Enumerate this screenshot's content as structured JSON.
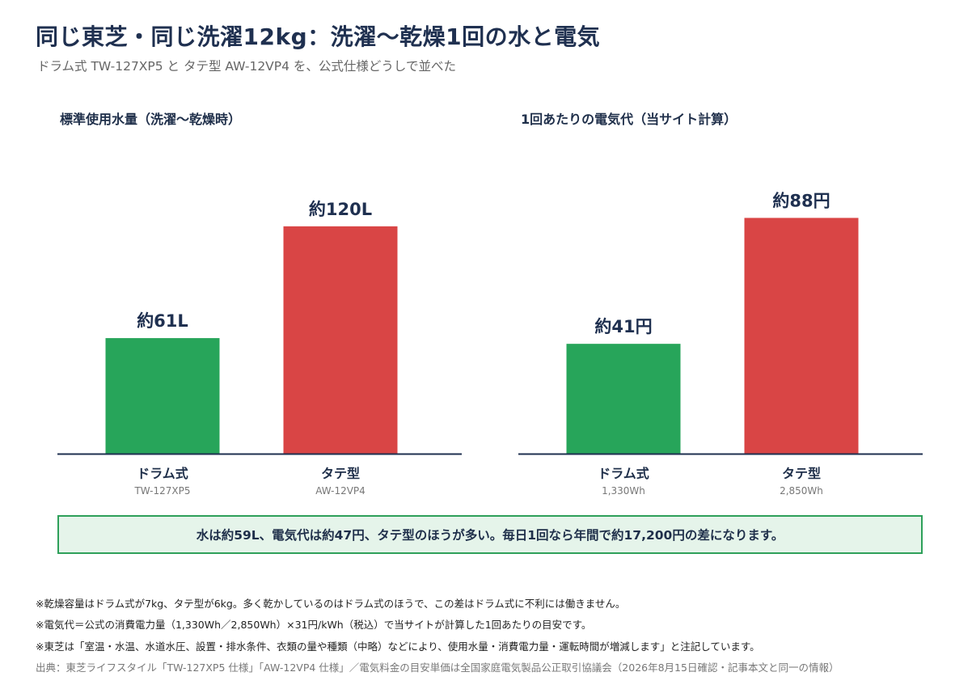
{
  "title": "同じ東芝・同じ洗濯12kg：洗濯〜乾燥1回の水と電気",
  "subtitle": "ドラム式 TW-127XP5 と タテ型 AW-12VP4 を、公式仕様どうしで並べた",
  "colors": {
    "drum": "#27a55a",
    "tate": "#d94545",
    "axis": "#1f3050",
    "callout_bg": "#e5f4ea",
    "callout_border": "#2ea05a"
  },
  "chart_data": [
    {
      "type": "bar",
      "title": "標準使用水量（洗濯〜乾燥時）",
      "categories": [
        "ドラム式",
        "タテ型"
      ],
      "sublabels": [
        "TW-127XP5",
        "AW-12VP4"
      ],
      "values": [
        61,
        120
      ],
      "data_labels": [
        "約61L",
        "約120L"
      ],
      "unit": "L",
      "ylim": [
        0,
        140
      ],
      "grid": false
    },
    {
      "type": "bar",
      "title": "1回あたりの電気代（当サイト計算）",
      "categories": [
        "ドラム式",
        "タテ型"
      ],
      "sublabels": [
        "1,330Wh",
        "2,850Wh"
      ],
      "values": [
        41,
        88
      ],
      "data_labels": [
        "約41円",
        "約88円"
      ],
      "unit": "円",
      "ylim": [
        0,
        99
      ],
      "grid": false
    }
  ],
  "callout": "水は約59L、電気代は約47円、タテ型のほうが多い。毎日1回なら年間で約17,200円の差になります。",
  "notes": [
    "※乾燥容量はドラム式が7kg、タテ型が6kg。多く乾かしているのはドラム式のほうで、この差はドラム式に不利には働きません。",
    "※電気代＝公式の消費電力量（1,330Wh／2,850Wh）×31円/kWh（税込）で当サイトが計算した1回あたりの目安です。",
    "※東芝は「室温・水温、水道水圧、設置・排水条件、衣類の量や種類（中略）などにより、使用水量・消費電力量・運転時間が増減します」と注記しています。"
  ],
  "source": "出典：東芝ライフスタイル「TW-127XP5 仕様」「AW-12VP4 仕様」／電気料金の目安単価は全国家庭電気製品公正取引協議会（2026年8月15日確認・記事本文と同一の情報）"
}
